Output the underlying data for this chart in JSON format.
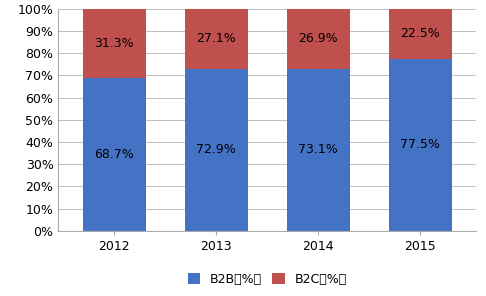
{
  "years": [
    "2012",
    "2013",
    "2014",
    "2015"
  ],
  "b2b_values": [
    68.7,
    72.9,
    73.1,
    77.5
  ],
  "b2c_values": [
    31.3,
    27.1,
    26.9,
    22.5
  ],
  "b2b_color": "#4472C4",
  "b2c_color": "#C0504D",
  "b2b_label": "B2B（%）",
  "b2c_label": "B2C（%）",
  "ylim": [
    0,
    100
  ],
  "yticks": [
    0,
    10,
    20,
    30,
    40,
    50,
    60,
    70,
    80,
    90,
    100
  ],
  "ytick_labels": [
    "0%",
    "10%",
    "20%",
    "30%",
    "40%",
    "50%",
    "60%",
    "70%",
    "80%",
    "90%",
    "100%"
  ],
  "bar_width": 0.62,
  "background_color": "#ffffff",
  "grid_color": "#c0c0c0",
  "label_fontsize": 9,
  "tick_fontsize": 9,
  "legend_fontsize": 9
}
